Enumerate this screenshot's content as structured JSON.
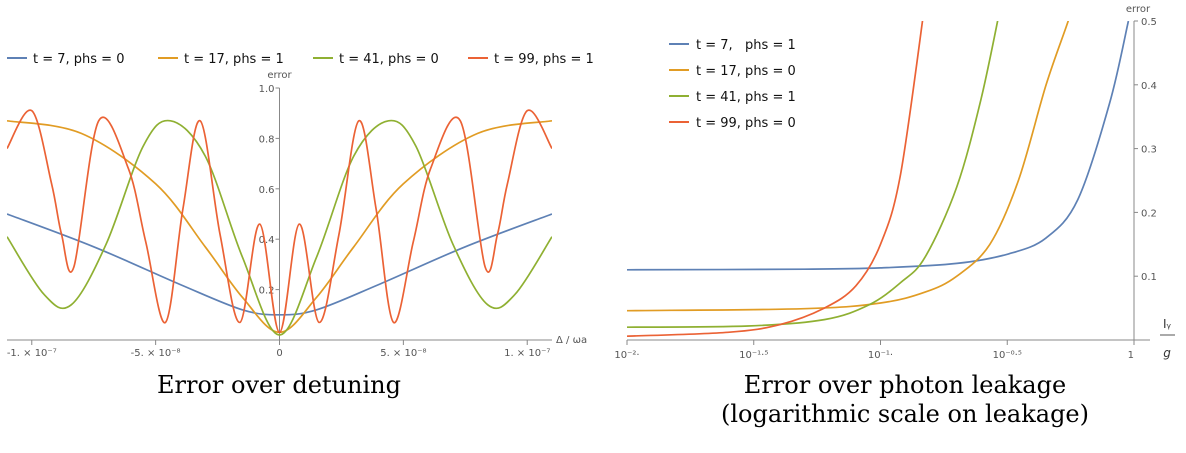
{
  "chart_data": [
    {
      "type": "line",
      "caption": "Error over detuning",
      "xlabel": "Δ / ωa",
      "ylabel": "error",
      "xlim": [
        -1.1e-07,
        1.1e-07
      ],
      "ylim": [
        0,
        1.0
      ],
      "x_ticks": [
        {
          "value": -1e-07,
          "label": "-1. × 10⁻⁷"
        },
        {
          "value": -5e-08,
          "label": "-5. × 10⁻⁸"
        },
        {
          "value": 0,
          "label": "0"
        },
        {
          "value": 5e-08,
          "label": "5. × 10⁻⁸"
        },
        {
          "value": 1e-07,
          "label": "1. × 10⁻⁷"
        }
      ],
      "y_ticks": [
        {
          "value": 0.2,
          "label": "0.2"
        },
        {
          "value": 0.4,
          "label": "0.4"
        },
        {
          "value": 0.6,
          "label": "0.6"
        },
        {
          "value": 0.8,
          "label": "0.8"
        },
        {
          "value": 1.0,
          "label": "1.0"
        }
      ],
      "legend_position": "top",
      "series": [
        {
          "name": "t = 7, phs = 0",
          "color": "#5e81b5",
          "x": [
            -1.1e-07,
            -7.5e-08,
            -4e-08,
            -1.5e-08,
            0,
            1.5e-08,
            4e-08,
            7.5e-08,
            1.1e-07
          ],
          "y": [
            0.5,
            0.37,
            0.22,
            0.12,
            0.1,
            0.12,
            0.22,
            0.37,
            0.5
          ]
        },
        {
          "name": "t = 17, phs = 1",
          "color": "#e19c24",
          "x": [
            -1.1e-07,
            -8e-08,
            -5e-08,
            -3e-08,
            -1.5e-08,
            0,
            1.5e-08,
            3e-08,
            5e-08,
            8e-08,
            1.1e-07
          ],
          "y": [
            0.87,
            0.82,
            0.62,
            0.37,
            0.17,
            0.03,
            0.17,
            0.37,
            0.62,
            0.82,
            0.87
          ]
        },
        {
          "name": "t = 41, phs = 0",
          "color": "#8fb032",
          "x": [
            -1.1e-07,
            -9.5e-08,
            -8.4e-08,
            -7e-08,
            -5.5e-08,
            -4.4e-08,
            -3e-08,
            -1.5e-08,
            0,
            1.5e-08,
            3e-08,
            4.4e-08,
            5.5e-08,
            7e-08,
            8.4e-08,
            9.5e-08,
            1.1e-07
          ],
          "y": [
            0.41,
            0.18,
            0.14,
            0.38,
            0.77,
            0.87,
            0.73,
            0.33,
            0.02,
            0.33,
            0.73,
            0.87,
            0.77,
            0.38,
            0.14,
            0.18,
            0.41
          ]
        },
        {
          "name": "t = 99, phs = 1",
          "color": "#eb6235",
          "x": [
            -1.1e-07,
            -1e-07,
            -9.2e-08,
            -8.8e-08,
            -8.3e-08,
            -7.3e-08,
            -6.1e-08,
            -5.4e-08,
            -4.6e-08,
            -3.9e-08,
            -3.2e-08,
            -2.4e-08,
            -1.6e-08,
            -8e-09,
            0,
            8e-09,
            1.6e-08,
            2.4e-08,
            3.2e-08,
            3.9e-08,
            4.6e-08,
            5.4e-08,
            6.1e-08,
            7.3e-08,
            8.3e-08,
            8.8e-08,
            9.2e-08,
            1e-07,
            1.1e-07
          ],
          "y": [
            0.76,
            0.91,
            0.62,
            0.42,
            0.29,
            0.87,
            0.68,
            0.39,
            0.07,
            0.52,
            0.87,
            0.42,
            0.07,
            0.46,
            0.03,
            0.46,
            0.07,
            0.42,
            0.87,
            0.52,
            0.07,
            0.39,
            0.68,
            0.87,
            0.29,
            0.42,
            0.62,
            0.91,
            0.76
          ]
        }
      ]
    },
    {
      "type": "line",
      "caption": "Error over photon leakage\n(logarithmic scale on leakage)",
      "xlabel_top": "Iᵧ",
      "xlabel_bottom": "g",
      "ylabel": "error",
      "xscale": "log",
      "xlim": [
        0.01,
        1.0
      ],
      "ylim": [
        0,
        0.5
      ],
      "x_ticks": [
        {
          "value": 0.01,
          "label": "10⁻²·"
        },
        {
          "value": 0.0316227766,
          "label": "10⁻¹·⁵"
        },
        {
          "value": 0.1,
          "label": "10⁻¹·"
        },
        {
          "value": 0.316227766,
          "label": "10⁻⁰·⁵"
        },
        {
          "value": 1.0,
          "label": "1"
        }
      ],
      "y_ticks": [
        {
          "value": 0.1,
          "label": "0.1"
        },
        {
          "value": 0.2,
          "label": "0.2"
        },
        {
          "value": 0.3,
          "label": "0.3"
        },
        {
          "value": 0.4,
          "label": "0.4"
        },
        {
          "value": 0.5,
          "label": "0.5"
        }
      ],
      "legend_position": "top-left",
      "series": [
        {
          "name": "t = 7,   phs = 1",
          "color": "#5e81b5",
          "x": [
            0.01,
            0.05,
            0.1,
            0.2,
            0.32,
            0.45,
            0.6,
            0.8,
            0.95
          ],
          "y": [
            0.11,
            0.111,
            0.113,
            0.12,
            0.135,
            0.16,
            0.22,
            0.37,
            0.5
          ]
        },
        {
          "name": "t = 17, phs = 0",
          "color": "#e19c24",
          "x": [
            0.01,
            0.05,
            0.1,
            0.15,
            0.2,
            0.27,
            0.35,
            0.45,
            0.55,
            0.6
          ],
          "y": [
            0.046,
            0.049,
            0.058,
            0.075,
            0.1,
            0.15,
            0.25,
            0.4,
            0.5,
            0.55
          ]
        },
        {
          "name": "t = 41, phs = 1",
          "color": "#8fb032",
          "x": [
            0.01,
            0.03,
            0.06,
            0.09,
            0.12,
            0.15,
            0.2,
            0.25,
            0.3
          ],
          "y": [
            0.02,
            0.022,
            0.032,
            0.055,
            0.09,
            0.13,
            0.24,
            0.38,
            0.53
          ]
        },
        {
          "name": "t = 99, phs = 0",
          "color": "#eb6235",
          "x": [
            0.01,
            0.025,
            0.04,
            0.06,
            0.08,
            0.1,
            0.12,
            0.15
          ],
          "y": [
            0.006,
            0.012,
            0.024,
            0.05,
            0.085,
            0.15,
            0.26,
            0.53
          ]
        }
      ]
    }
  ]
}
